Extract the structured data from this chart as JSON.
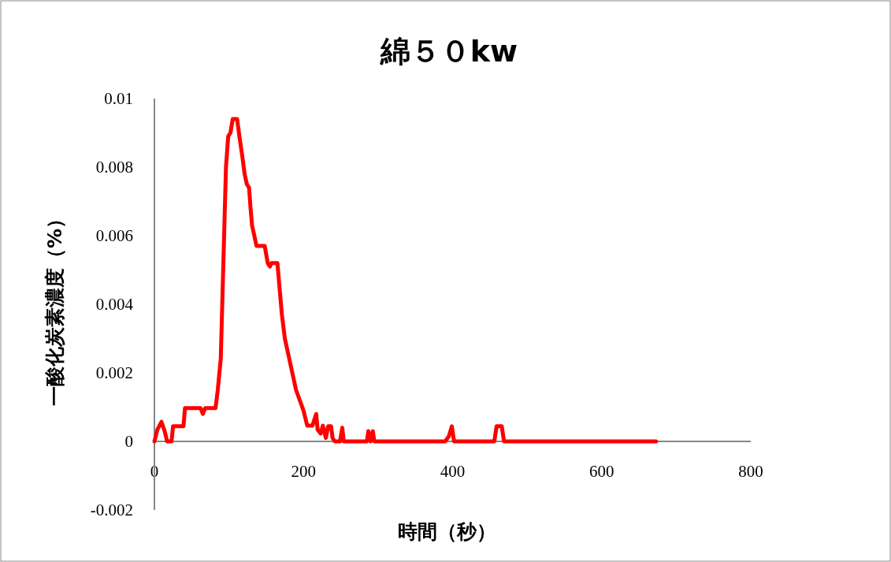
{
  "chart_data": {
    "type": "line",
    "title": "綿５０kw",
    "xlabel": "時間（秒）",
    "ylabel": "一酸化炭素濃度（%）",
    "xlim": [
      0,
      800
    ],
    "xticks": [
      0,
      200,
      400,
      600,
      800
    ],
    "ylim": [
      -0.002,
      0.01
    ],
    "yticks": [
      -0.002,
      0,
      0.002,
      0.004,
      0.006,
      0.008,
      0.01
    ],
    "grid": false,
    "marker": "none",
    "line_style": "solid",
    "series": [
      {
        "color": "#ff0000",
        "x": [
          0,
          4,
          9.5,
          14,
          17,
          23,
          25,
          39,
          41,
          62,
          65,
          68,
          82,
          85,
          89,
          92,
          96,
          99,
          102,
          105,
          111,
          114,
          118,
          121,
          124,
          127,
          129,
          131,
          137,
          148,
          152,
          155,
          157,
          165,
          167,
          171,
          175,
          180,
          185,
          190,
          200,
          205,
          212,
          217,
          219,
          223,
          226,
          230,
          233,
          237,
          239,
          242,
          249,
          252,
          254,
          285,
          287,
          290,
          293,
          295,
          390,
          395,
          399,
          402,
          456,
          459,
          466,
          469,
          673
        ],
        "values": [
          0,
          0.00034,
          0.00057,
          0.00028,
          0,
          0,
          0.00044,
          0.00044,
          0.00097,
          0.00097,
          0.0008,
          0.00097,
          0.00097,
          0.0015,
          0.0024,
          0.0048,
          0.008,
          0.0089,
          0.009,
          0.0094,
          0.0094,
          0.0089,
          0.0083,
          0.0078,
          0.0075,
          0.0074,
          0.0068,
          0.0063,
          0.0057,
          0.0057,
          0.0052,
          0.0051,
          0.0052,
          0.0052,
          0.0047,
          0.0037,
          0.003,
          0.0025,
          0.002,
          0.0015,
          0.0009,
          0.00046,
          0.00046,
          0.0008,
          0.00034,
          0.00023,
          0.00046,
          0.0001,
          0.00044,
          0.00044,
          0.0001,
          0,
          0,
          0.0004,
          0,
          0,
          0.0003,
          0,
          0.0003,
          0,
          0,
          0.00015,
          0.00044,
          0,
          0,
          0.00044,
          0.00044,
          0,
          0
        ]
      }
    ]
  }
}
